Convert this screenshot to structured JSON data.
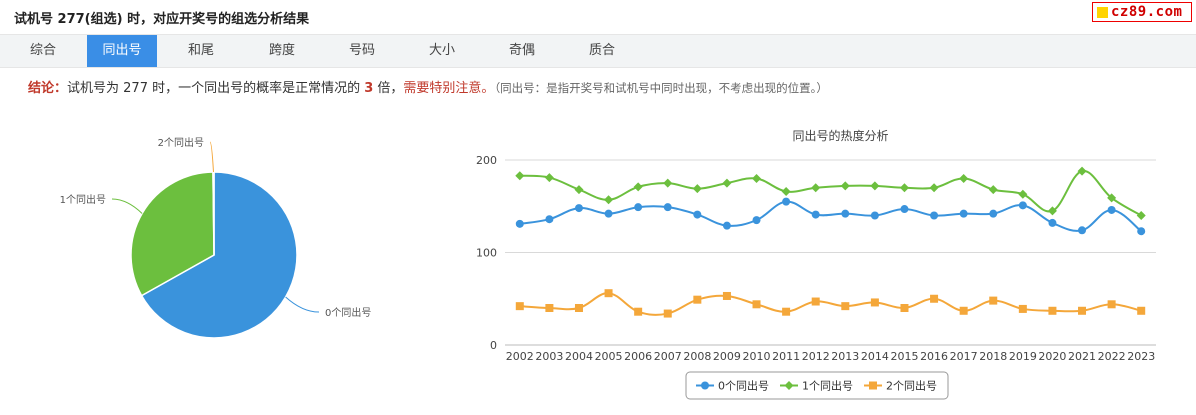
{
  "header": {
    "title": "试机号 277(组选) 时，对应开奖号的组选分析结果",
    "brand": "cz89.com"
  },
  "tabs": [
    {
      "label": "综合",
      "active": false
    },
    {
      "label": "同出号",
      "active": true
    },
    {
      "label": "和尾",
      "active": false
    },
    {
      "label": "跨度",
      "active": false
    },
    {
      "label": "号码",
      "active": false
    },
    {
      "label": "大小",
      "active": false
    },
    {
      "label": "奇偶",
      "active": false
    },
    {
      "label": "质合",
      "active": false
    }
  ],
  "conclusion": {
    "label": "结论：",
    "text1": "试机号为 277 时，一个同出号的概率是正常情况的 ",
    "ratio": "3",
    "text2": " 倍，",
    "warning": "需要特别注意。",
    "note": "（同出号：是指开奖号和试机号中同时出现，不考虑出现的位置。）"
  },
  "colors": {
    "series0": "#3a93dc",
    "series1": "#6cbf3e",
    "series2": "#f4a73a",
    "tab_active": "#3a8ee6"
  },
  "chart_data": [
    {
      "type": "pie",
      "labels": [
        "0个同出号",
        "1个同出号",
        "2个同出号"
      ],
      "values": [
        67,
        33,
        0.2
      ]
    },
    {
      "type": "line",
      "title": "同出号的热度分析",
      "x": [
        "2002",
        "2003",
        "2004",
        "2005",
        "2006",
        "2007",
        "2008",
        "2009",
        "2010",
        "2011",
        "2012",
        "2013",
        "2014",
        "2015",
        "2016",
        "2017",
        "2018",
        "2019",
        "2020",
        "2021",
        "2022",
        "2023"
      ],
      "ylim": [
        0,
        200
      ],
      "yticks": [
        "0",
        "100",
        "200"
      ],
      "legend": "bottom",
      "series": [
        {
          "name": "0个同出号",
          "values": [
            131,
            136,
            148,
            142,
            149,
            149,
            141,
            129,
            135,
            155,
            141,
            142,
            140,
            147,
            140,
            142,
            142,
            151,
            132,
            124,
            146,
            123
          ]
        },
        {
          "name": "1个同出号",
          "values": [
            183,
            181,
            168,
            157,
            171,
            175,
            169,
            175,
            180,
            166,
            170,
            172,
            172,
            170,
            170,
            180,
            168,
            163,
            145,
            188,
            159,
            140
          ]
        },
        {
          "name": "2个同出号",
          "values": [
            42,
            40,
            40,
            56,
            36,
            34,
            49,
            53,
            44,
            36,
            47,
            42,
            46,
            40,
            50,
            37,
            48,
            39,
            37,
            37,
            44,
            37
          ]
        }
      ]
    }
  ]
}
